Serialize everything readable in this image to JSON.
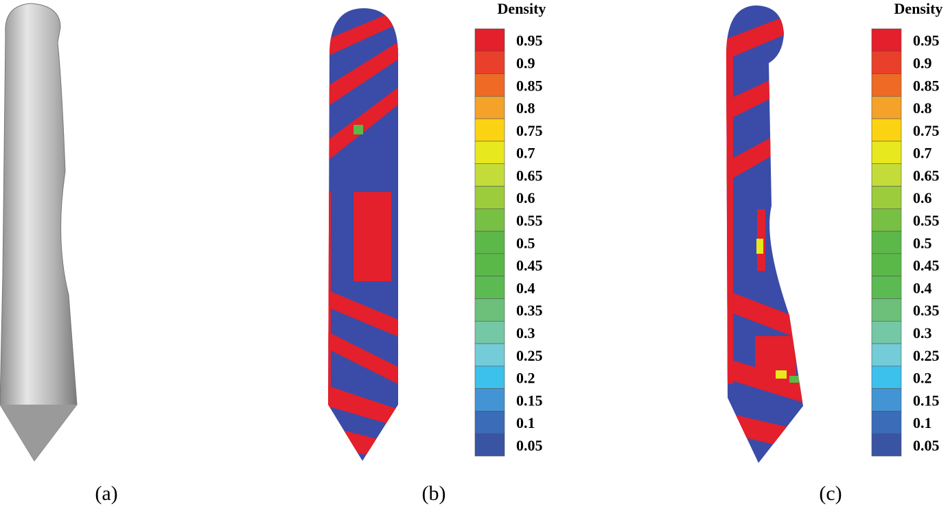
{
  "panels": [
    {
      "caption": "(a)"
    },
    {
      "caption": "(b)",
      "colorbar": {
        "title": "Density",
        "labels": [
          "0.95",
          "0.9",
          "0.85",
          "0.8",
          "0.75",
          "0.7",
          "0.65",
          "0.6",
          "0.55",
          "0.5",
          "0.45",
          "0.4",
          "0.35",
          "0.3",
          "0.25",
          "0.2",
          "0.15",
          "0.1",
          "0.05"
        ]
      }
    },
    {
      "caption": "(c)",
      "colorbar": {
        "title": "Density",
        "labels": [
          "0.95",
          "0.9",
          "0.85",
          "0.8",
          "0.75",
          "0.7",
          "0.65",
          "0.6",
          "0.55",
          "0.5",
          "0.45",
          "0.4",
          "0.35",
          "0.3",
          "0.25",
          "0.2",
          "0.15",
          "0.1",
          "0.05"
        ]
      }
    }
  ]
}
